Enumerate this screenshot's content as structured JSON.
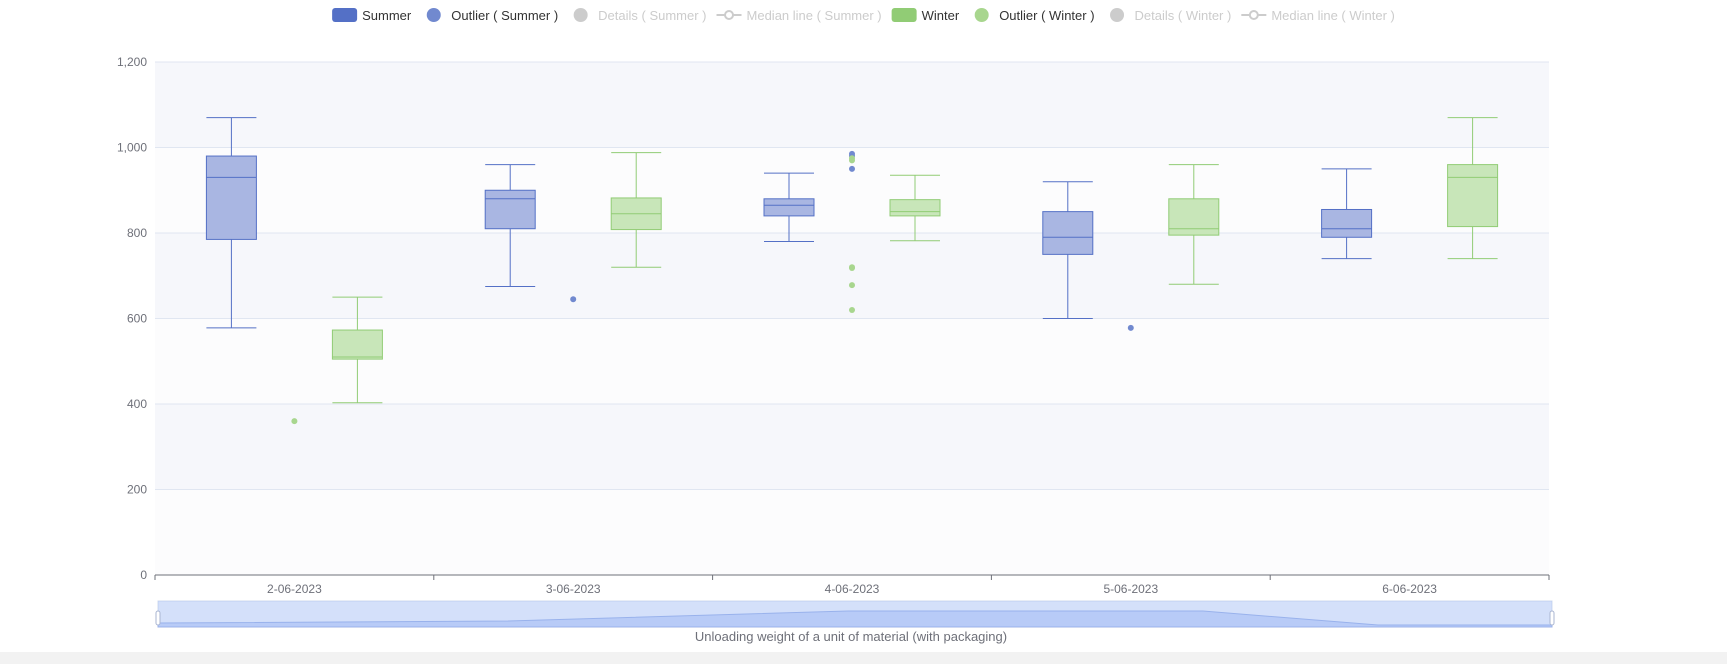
{
  "chart_data": {
    "type": "boxplot",
    "xlabel": "",
    "ylabel": "",
    "ylim": [
      0,
      1200
    ],
    "y_ticks": [
      0,
      200,
      400,
      600,
      800,
      1000,
      1200
    ],
    "y_tick_labels": [
      "0",
      "200",
      "400",
      "600",
      "800",
      "1,000",
      "1,200"
    ],
    "categories": [
      "2-06-2023",
      "3-06-2023",
      "4-06-2023",
      "5-06-2023",
      "6-06-2023"
    ],
    "grid": true,
    "legend_position": "top-center",
    "series": [
      {
        "name": "Summer",
        "color": "#5470c6",
        "fill": "#a9b6e2",
        "boxes": [
          {
            "min": 578,
            "q1": 785,
            "median": 930,
            "q3": 980,
            "max": 1070
          },
          {
            "min": 675,
            "q1": 810,
            "median": 880,
            "q3": 900,
            "max": 960
          },
          {
            "min": 780,
            "q1": 840,
            "median": 865,
            "q3": 880,
            "max": 940
          },
          {
            "min": 600,
            "q1": 750,
            "median": 790,
            "q3": 850,
            "max": 920
          },
          {
            "min": 740,
            "q1": 790,
            "median": 810,
            "q3": 855,
            "max": 950
          }
        ],
        "outliers": [
          {
            "category": "3-06-2023",
            "value": 645
          },
          {
            "category": "4-06-2023",
            "value": 985
          },
          {
            "category": "4-06-2023",
            "value": 980
          },
          {
            "category": "4-06-2023",
            "value": 950
          },
          {
            "category": "5-06-2023",
            "value": 578
          }
        ]
      },
      {
        "name": "Winter",
        "color": "#91cc75",
        "fill": "#c8e6b9",
        "boxes": [
          {
            "min": 403,
            "q1": 505,
            "median": 510,
            "q3": 573,
            "max": 650
          },
          {
            "min": 720,
            "q1": 808,
            "median": 845,
            "q3": 882,
            "max": 988
          },
          {
            "min": 782,
            "q1": 840,
            "median": 850,
            "q3": 878,
            "max": 935
          },
          {
            "min": 680,
            "q1": 795,
            "median": 810,
            "q3": 880,
            "max": 960
          },
          {
            "min": 740,
            "q1": 815,
            "median": 930,
            "q3": 960,
            "max": 1070
          }
        ],
        "outliers": [
          {
            "category": "2-06-2023",
            "value": 360
          },
          {
            "category": "4-06-2023",
            "value": 975
          },
          {
            "category": "4-06-2023",
            "value": 970
          },
          {
            "category": "4-06-2023",
            "value": 720
          },
          {
            "category": "4-06-2023",
            "value": 718
          },
          {
            "category": "4-06-2023",
            "value": 678
          },
          {
            "category": "4-06-2023",
            "value": 620
          }
        ]
      }
    ]
  },
  "legend": [
    {
      "label": "Summer",
      "symbol": "rect",
      "color": "#5470c6",
      "active": true
    },
    {
      "label": "Outlier ( Summer )",
      "symbol": "circle",
      "color": "#7189cf",
      "active": true
    },
    {
      "label": "Details ( Summer )",
      "symbol": "circle",
      "color": "#cccccc",
      "active": false
    },
    {
      "label": "Median line ( Summer )",
      "symbol": "line",
      "color": "#cccccc",
      "active": false
    },
    {
      "label": "Winter",
      "symbol": "rect",
      "color": "#91cc75",
      "active": true
    },
    {
      "label": "Outlier ( Winter )",
      "symbol": "circle",
      "color": "#a8d68e",
      "active": true
    },
    {
      "label": "Details ( Winter )",
      "symbol": "circle",
      "color": "#cccccc",
      "active": false
    },
    {
      "label": "Median line ( Winter )",
      "symbol": "line",
      "color": "#cccccc",
      "active": false
    }
  ],
  "data_zoom": {
    "label": "Unloading weight of a unit of material (with packaging)",
    "range_start_percent": 0,
    "range_end_percent": 100
  }
}
